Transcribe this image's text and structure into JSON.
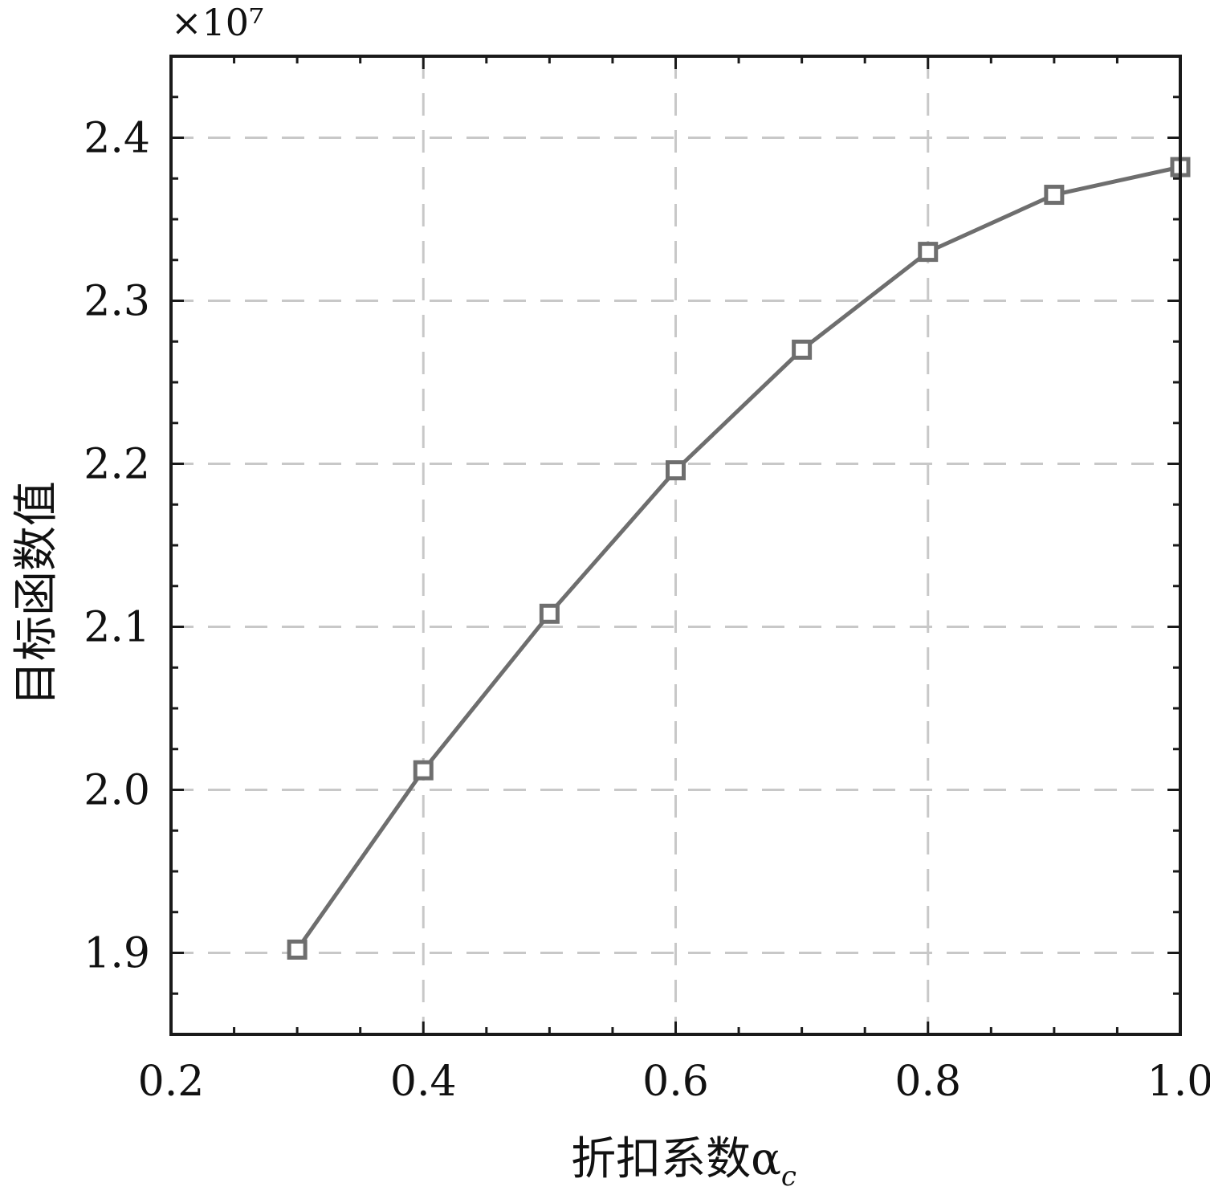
{
  "chart_data": {
    "type": "line",
    "scale_label": "×10⁷",
    "xlabel": "折扣系数α",
    "xlabel_subscript": "c",
    "ylabel": "目标函数值",
    "xlim": [
      0.2,
      1.0
    ],
    "ylim": [
      1.85,
      2.45
    ],
    "x_ticks": [
      0.2,
      0.4,
      0.6,
      0.8,
      1.0
    ],
    "x_tick_labels": [
      "0.2",
      "0.4",
      "0.6",
      "0.8",
      "1.0"
    ],
    "x_minor_step": 0.05,
    "y_ticks": [
      1.9,
      2.0,
      2.1,
      2.2,
      2.3,
      2.4
    ],
    "y_tick_labels": [
      "1.9",
      "2.0",
      "2.1",
      "2.2",
      "2.3",
      "2.4"
    ],
    "y_minor_step": 0.025,
    "grid_x": [
      0.4,
      0.6,
      0.8
    ],
    "grid_y": [
      1.9,
      2.0,
      2.1,
      2.2,
      2.3,
      2.4
    ],
    "grid": true,
    "x": [
      0.3,
      0.4,
      0.5,
      0.6,
      0.7,
      0.8,
      0.9,
      1.0
    ],
    "series": [
      {
        "values": [
          1.902,
          2.012,
          2.108,
          2.196,
          2.27,
          2.33,
          2.365,
          2.382
        ],
        "marker": "square",
        "color": "#6e6e6e"
      }
    ]
  }
}
